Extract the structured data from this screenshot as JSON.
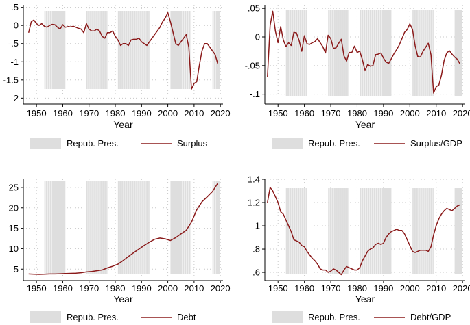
{
  "colors": {
    "line": "#8b1a1a",
    "shade": "#dedede",
    "grid": "#c8c8c8"
  },
  "legend": {
    "shade_label": "Repub. Pres."
  },
  "republican_terms": [
    [
      1953,
      1961
    ],
    [
      1969,
      1977
    ],
    [
      1981,
      1993
    ],
    [
      2001,
      2009
    ],
    [
      2017,
      2020
    ]
  ],
  "chart_data": [
    {
      "type": "line",
      "xlabel": "Year",
      "ylabel": "",
      "xlim": [
        1945,
        2021
      ],
      "ylim": [
        -2.05,
        0.55
      ],
      "xticks": [
        1950,
        1960,
        1970,
        1980,
        1990,
        2000,
        2010,
        2020
      ],
      "yticks": [
        -2,
        -1.5,
        -1,
        -0.5,
        0,
        0.5
      ],
      "ytick_labels": [
        "-2",
        "-1.5",
        "-1",
        "-.5",
        "0",
        ".5"
      ],
      "series": [
        {
          "name": "Surplus",
          "x": [
            1947,
            1948,
            1949,
            1950,
            1951,
            1952,
            1953,
            1954,
            1955,
            1956,
            1957,
            1958,
            1959,
            1960,
            1961,
            1962,
            1963,
            1964,
            1965,
            1966,
            1967,
            1968,
            1969,
            1970,
            1971,
            1972,
            1973,
            1974,
            1975,
            1976,
            1977,
            1978,
            1979,
            1980,
            1981,
            1982,
            1983,
            1984,
            1985,
            1986,
            1987,
            1988,
            1989,
            1990,
            1991,
            1992,
            1993,
            1994,
            1995,
            1996,
            1997,
            1998,
            1999,
            2000,
            2001,
            2002,
            2003,
            2004,
            2005,
            2006,
            2007,
            2008,
            2009,
            2010,
            2011,
            2012,
            2013,
            2014,
            2015,
            2016,
            2017,
            2018,
            2019
          ],
          "y": [
            -0.2,
            0.1,
            0.15,
            0.05,
            0.0,
            0.05,
            -0.02,
            -0.05,
            0.0,
            0.03,
            0.02,
            -0.05,
            -0.1,
            0.02,
            -0.05,
            -0.03,
            -0.04,
            -0.02,
            -0.05,
            -0.08,
            -0.1,
            -0.2,
            0.05,
            -0.1,
            -0.15,
            -0.15,
            -0.1,
            -0.15,
            -0.3,
            -0.35,
            -0.2,
            -0.2,
            -0.15,
            -0.3,
            -0.4,
            -0.55,
            -0.5,
            -0.5,
            -0.55,
            -0.4,
            -0.38,
            -0.38,
            -0.35,
            -0.45,
            -0.5,
            -0.55,
            -0.45,
            -0.35,
            -0.25,
            -0.15,
            -0.05,
            0.1,
            0.2,
            0.35,
            0.1,
            -0.2,
            -0.5,
            -0.55,
            -0.45,
            -0.35,
            -0.25,
            -0.6,
            -1.75,
            -1.6,
            -1.55,
            -1.1,
            -0.7,
            -0.5,
            -0.5,
            -0.6,
            -0.7,
            -0.8,
            -1.05
          ]
        }
      ]
    },
    {
      "type": "line",
      "xlabel": "Year",
      "ylabel": "",
      "xlim": [
        1945,
        2021
      ],
      "ylim": [
        -0.11,
        0.055
      ],
      "xticks": [
        1950,
        1960,
        1970,
        1980,
        1990,
        2000,
        2010,
        2020
      ],
      "yticks": [
        -0.1,
        -0.05,
        0,
        0.05
      ],
      "ytick_labels": [
        "-.1",
        "-.05",
        "0",
        ".05"
      ],
      "series": [
        {
          "name": "Surplus/GDP",
          "x": [
            1946,
            1947,
            1948,
            1949,
            1950,
            1951,
            1952,
            1953,
            1954,
            1955,
            1956,
            1957,
            1958,
            1959,
            1960,
            1961,
            1962,
            1963,
            1964,
            1965,
            1966,
            1967,
            1968,
            1969,
            1970,
            1971,
            1972,
            1973,
            1974,
            1975,
            1976,
            1977,
            1978,
            1979,
            1980,
            1981,
            1982,
            1983,
            1984,
            1985,
            1986,
            1987,
            1988,
            1989,
            1990,
            1991,
            1992,
            1993,
            1994,
            1995,
            1996,
            1997,
            1998,
            1999,
            2000,
            2001,
            2002,
            2003,
            2004,
            2005,
            2006,
            2007,
            2008,
            2009,
            2010,
            2011,
            2012,
            2013,
            2014,
            2015,
            2016,
            2017,
            2018,
            2019
          ],
          "y": [
            -0.07,
            0.02,
            0.045,
            0.01,
            -0.01,
            0.018,
            -0.005,
            -0.017,
            -0.01,
            -0.015,
            0.008,
            0.007,
            -0.006,
            -0.025,
            0.002,
            -0.012,
            -0.013,
            -0.01,
            -0.008,
            -0.003,
            -0.01,
            -0.017,
            -0.028,
            0.003,
            -0.003,
            -0.02,
            -0.019,
            -0.011,
            -0.004,
            -0.033,
            -0.042,
            -0.027,
            -0.027,
            -0.016,
            -0.027,
            -0.025,
            -0.04,
            -0.059,
            -0.048,
            -0.051,
            -0.05,
            -0.031,
            -0.03,
            -0.028,
            -0.037,
            -0.044,
            -0.046,
            -0.038,
            -0.029,
            -0.022,
            -0.014,
            -0.003,
            0.008,
            0.013,
            0.023,
            0.013,
            -0.015,
            -0.034,
            -0.035,
            -0.025,
            -0.018,
            -0.011,
            -0.031,
            -0.098,
            -0.087,
            -0.084,
            -0.067,
            -0.041,
            -0.028,
            -0.024,
            -0.03,
            -0.035,
            -0.039,
            -0.047
          ]
        }
      ]
    },
    {
      "type": "line",
      "xlabel": "Year",
      "ylabel": "",
      "xlim": [
        1945,
        2021
      ],
      "ylim": [
        3.2,
        27
      ],
      "xticks": [
        1950,
        1960,
        1970,
        1980,
        1990,
        2000,
        2010,
        2020
      ],
      "yticks": [
        5,
        10,
        15,
        20,
        25
      ],
      "ytick_labels": [
        "5",
        "10",
        "15",
        "20",
        "25"
      ],
      "series": [
        {
          "name": "Debt",
          "x": [
            1947,
            1949,
            1951,
            1953,
            1955,
            1957,
            1959,
            1961,
            1963,
            1965,
            1967,
            1969,
            1971,
            1973,
            1975,
            1977,
            1979,
            1981,
            1983,
            1985,
            1987,
            1989,
            1991,
            1993,
            1995,
            1997,
            1999,
            2001,
            2003,
            2005,
            2007,
            2009,
            2011,
            2013,
            2015,
            2017,
            2019
          ],
          "y": [
            3.8,
            3.75,
            3.7,
            3.75,
            3.8,
            3.8,
            3.85,
            3.9,
            3.95,
            4.0,
            4.1,
            4.3,
            4.4,
            4.6,
            4.8,
            5.3,
            5.7,
            6.2,
            7.1,
            8.1,
            9.0,
            9.9,
            10.8,
            11.6,
            12.3,
            12.6,
            12.4,
            12.0,
            12.7,
            13.6,
            14.5,
            16.5,
            19.5,
            21.5,
            22.7,
            24.0,
            26.0
          ]
        }
      ]
    },
    {
      "type": "line",
      "xlabel": "Year",
      "ylabel": "",
      "xlim": [
        1945,
        2021
      ],
      "ylim": [
        0.565,
        1.4
      ],
      "xticks": [
        1950,
        1960,
        1970,
        1980,
        1990,
        2000,
        2010,
        2020
      ],
      "yticks": [
        0.6,
        0.8,
        1.0,
        1.2,
        1.4
      ],
      "ytick_labels": [
        ".6",
        ".8",
        "1",
        "1.2",
        "1.4"
      ],
      "series": [
        {
          "name": "Debt/GDP",
          "x": [
            1946,
            1947,
            1948,
            1949,
            1950,
            1951,
            1952,
            1953,
            1954,
            1955,
            1956,
            1957,
            1958,
            1959,
            1960,
            1961,
            1962,
            1963,
            1964,
            1965,
            1966,
            1967,
            1968,
            1969,
            1970,
            1971,
            1972,
            1973,
            1974,
            1975,
            1976,
            1977,
            1978,
            1979,
            1980,
            1981,
            1982,
            1983,
            1984,
            1985,
            1986,
            1987,
            1988,
            1989,
            1990,
            1991,
            1992,
            1993,
            1994,
            1995,
            1996,
            1997,
            1998,
            1999,
            2000,
            2001,
            2002,
            2003,
            2004,
            2005,
            2006,
            2007,
            2008,
            2009,
            2010,
            2011,
            2012,
            2013,
            2014,
            2015,
            2016,
            2017,
            2018,
            2019
          ],
          "y": [
            1.2,
            1.33,
            1.3,
            1.25,
            1.2,
            1.12,
            1.1,
            1.05,
            1.0,
            0.95,
            0.88,
            0.87,
            0.86,
            0.83,
            0.82,
            0.78,
            0.75,
            0.72,
            0.7,
            0.67,
            0.63,
            0.62,
            0.62,
            0.6,
            0.61,
            0.63,
            0.62,
            0.6,
            0.58,
            0.62,
            0.65,
            0.64,
            0.63,
            0.62,
            0.62,
            0.64,
            0.7,
            0.74,
            0.78,
            0.8,
            0.81,
            0.84,
            0.85,
            0.84,
            0.85,
            0.9,
            0.93,
            0.95,
            0.96,
            0.97,
            0.96,
            0.96,
            0.93,
            0.88,
            0.83,
            0.78,
            0.77,
            0.78,
            0.79,
            0.79,
            0.79,
            0.78,
            0.82,
            0.92,
            1.0,
            1.06,
            1.1,
            1.13,
            1.15,
            1.14,
            1.13,
            1.15,
            1.17,
            1.18
          ]
        }
      ]
    }
  ]
}
